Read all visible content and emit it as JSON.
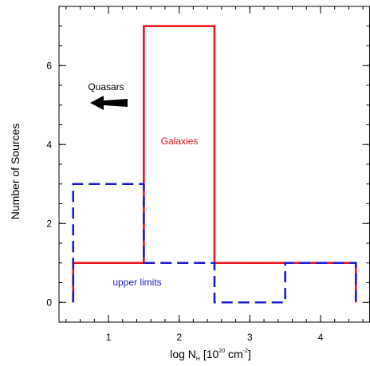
{
  "chart_data": {
    "type": "histogram",
    "xlabel": {
      "main": "log N",
      "sub": "H",
      "bracket_open": " [10",
      "exp1": "20",
      "unit": " cm",
      "exp2": "-2",
      "bracket_close": "]"
    },
    "ylabel": "Number of Sources",
    "xlim": [
      0.3,
      4.7
    ],
    "ylim": [
      -0.5,
      7.5
    ],
    "x_ticks": [
      {
        "value": 1,
        "label": "1"
      },
      {
        "value": 2,
        "label": "2"
      },
      {
        "value": 3,
        "label": "3"
      },
      {
        "value": 4,
        "label": "4"
      }
    ],
    "y_ticks": [
      {
        "value": 0,
        "label": "0"
      },
      {
        "value": 2,
        "label": "2"
      },
      {
        "value": 4,
        "label": "4"
      },
      {
        "value": 6,
        "label": "6"
      }
    ],
    "bin_edges": [
      0.5,
      1.5,
      2.5,
      3.5,
      4.5
    ],
    "series": [
      {
        "name": "Galaxies",
        "color": "#e8141b",
        "style": "solid",
        "counts": [
          1,
          7,
          1,
          1
        ]
      },
      {
        "name": "upper limits",
        "color": "#1c1ccc",
        "style": "dashed",
        "counts": [
          3,
          1,
          0,
          1
        ]
      }
    ],
    "annotations": [
      {
        "text": "Quasars",
        "arrow": "left",
        "x": 1.0,
        "y": 5.4
      }
    ],
    "grid": false
  }
}
